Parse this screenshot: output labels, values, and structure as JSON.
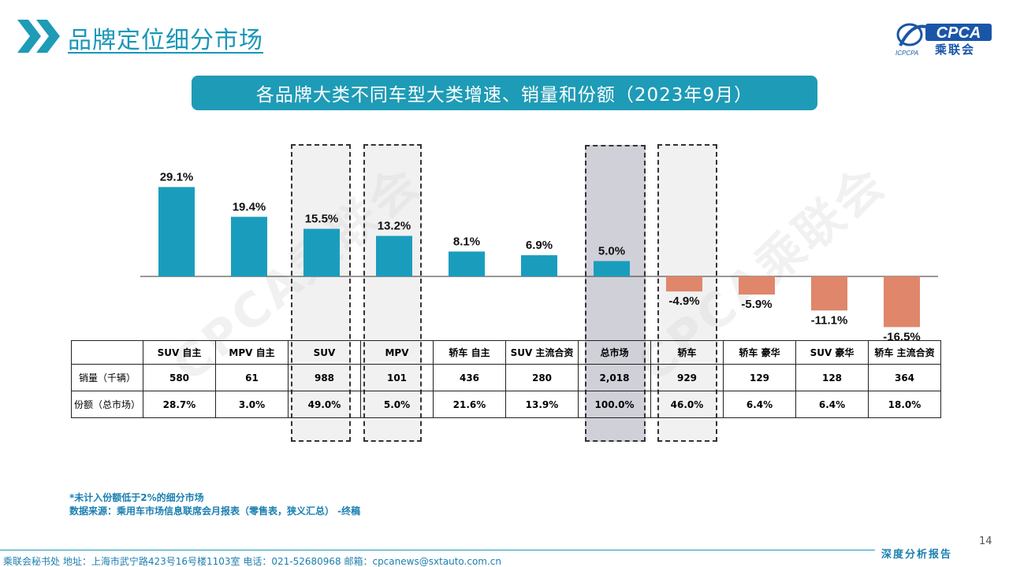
{
  "header": {
    "title": "品牌定位细分市场",
    "logo_text": "CPCA",
    "logo_cn": "乘联会",
    "logo_sub": "ICPCPA"
  },
  "banner": {
    "text": "各品牌大类不同车型大类增速、销量和份额（2023年9月）"
  },
  "watermark": {
    "text": "CPCA乘联会"
  },
  "chart_data": {
    "type": "bar",
    "categories": [
      "SUV 自主",
      "MPV 自主",
      "SUV",
      "MPV",
      "轿车 自主",
      "SUV 主流合资",
      "总市场",
      "轿车",
      "轿车 豪华",
      "SUV 豪华",
      "轿车 主流合资"
    ],
    "values": [
      29.1,
      19.4,
      15.5,
      13.2,
      8.1,
      6.9,
      5.0,
      -4.9,
      -5.9,
      -11.1,
      -16.5
    ],
    "data_labels": [
      "29.1%",
      "19.4%",
      "15.5%",
      "13.2%",
      "8.1%",
      "6.9%",
      "5.0%",
      "-4.9%",
      "-5.9%",
      "-11.1%",
      "-16.5%"
    ],
    "colors": {
      "positive": "#1a9dbd",
      "negative": "#e0866a"
    },
    "highlighted": [
      "SUV",
      "MPV",
      "总市场",
      "轿车"
    ],
    "ylim": [
      -17,
      30
    ],
    "grid": false,
    "title": "",
    "xlabel": "",
    "ylabel": ""
  },
  "table": {
    "rows": [
      {
        "label": "销量（千辆）",
        "values": [
          "580",
          "61",
          "988",
          "101",
          "436",
          "280",
          "2,018",
          "929",
          "129",
          "128",
          "364"
        ]
      },
      {
        "label": "份额（总市场）",
        "values": [
          "28.7%",
          "3.0%",
          "49.0%",
          "5.0%",
          "21.6%",
          "13.9%",
          "100.0%",
          "46.0%",
          "6.4%",
          "6.4%",
          "18.0%"
        ]
      }
    ]
  },
  "notes": {
    "note1": "*未计入份额低于2%的细分市场",
    "note2": "数据来源：乘用车市场信息联席会月报表（零售表，狭义汇总）  -终稿"
  },
  "footer": {
    "text": "乘联会秘书处   地址：上海市武宁路423号16号楼1103室   电话：021-52680968    邮箱：cpcanews@sxtauto.com.cn",
    "page_number": "14",
    "report_tag": "深度分析报告"
  }
}
